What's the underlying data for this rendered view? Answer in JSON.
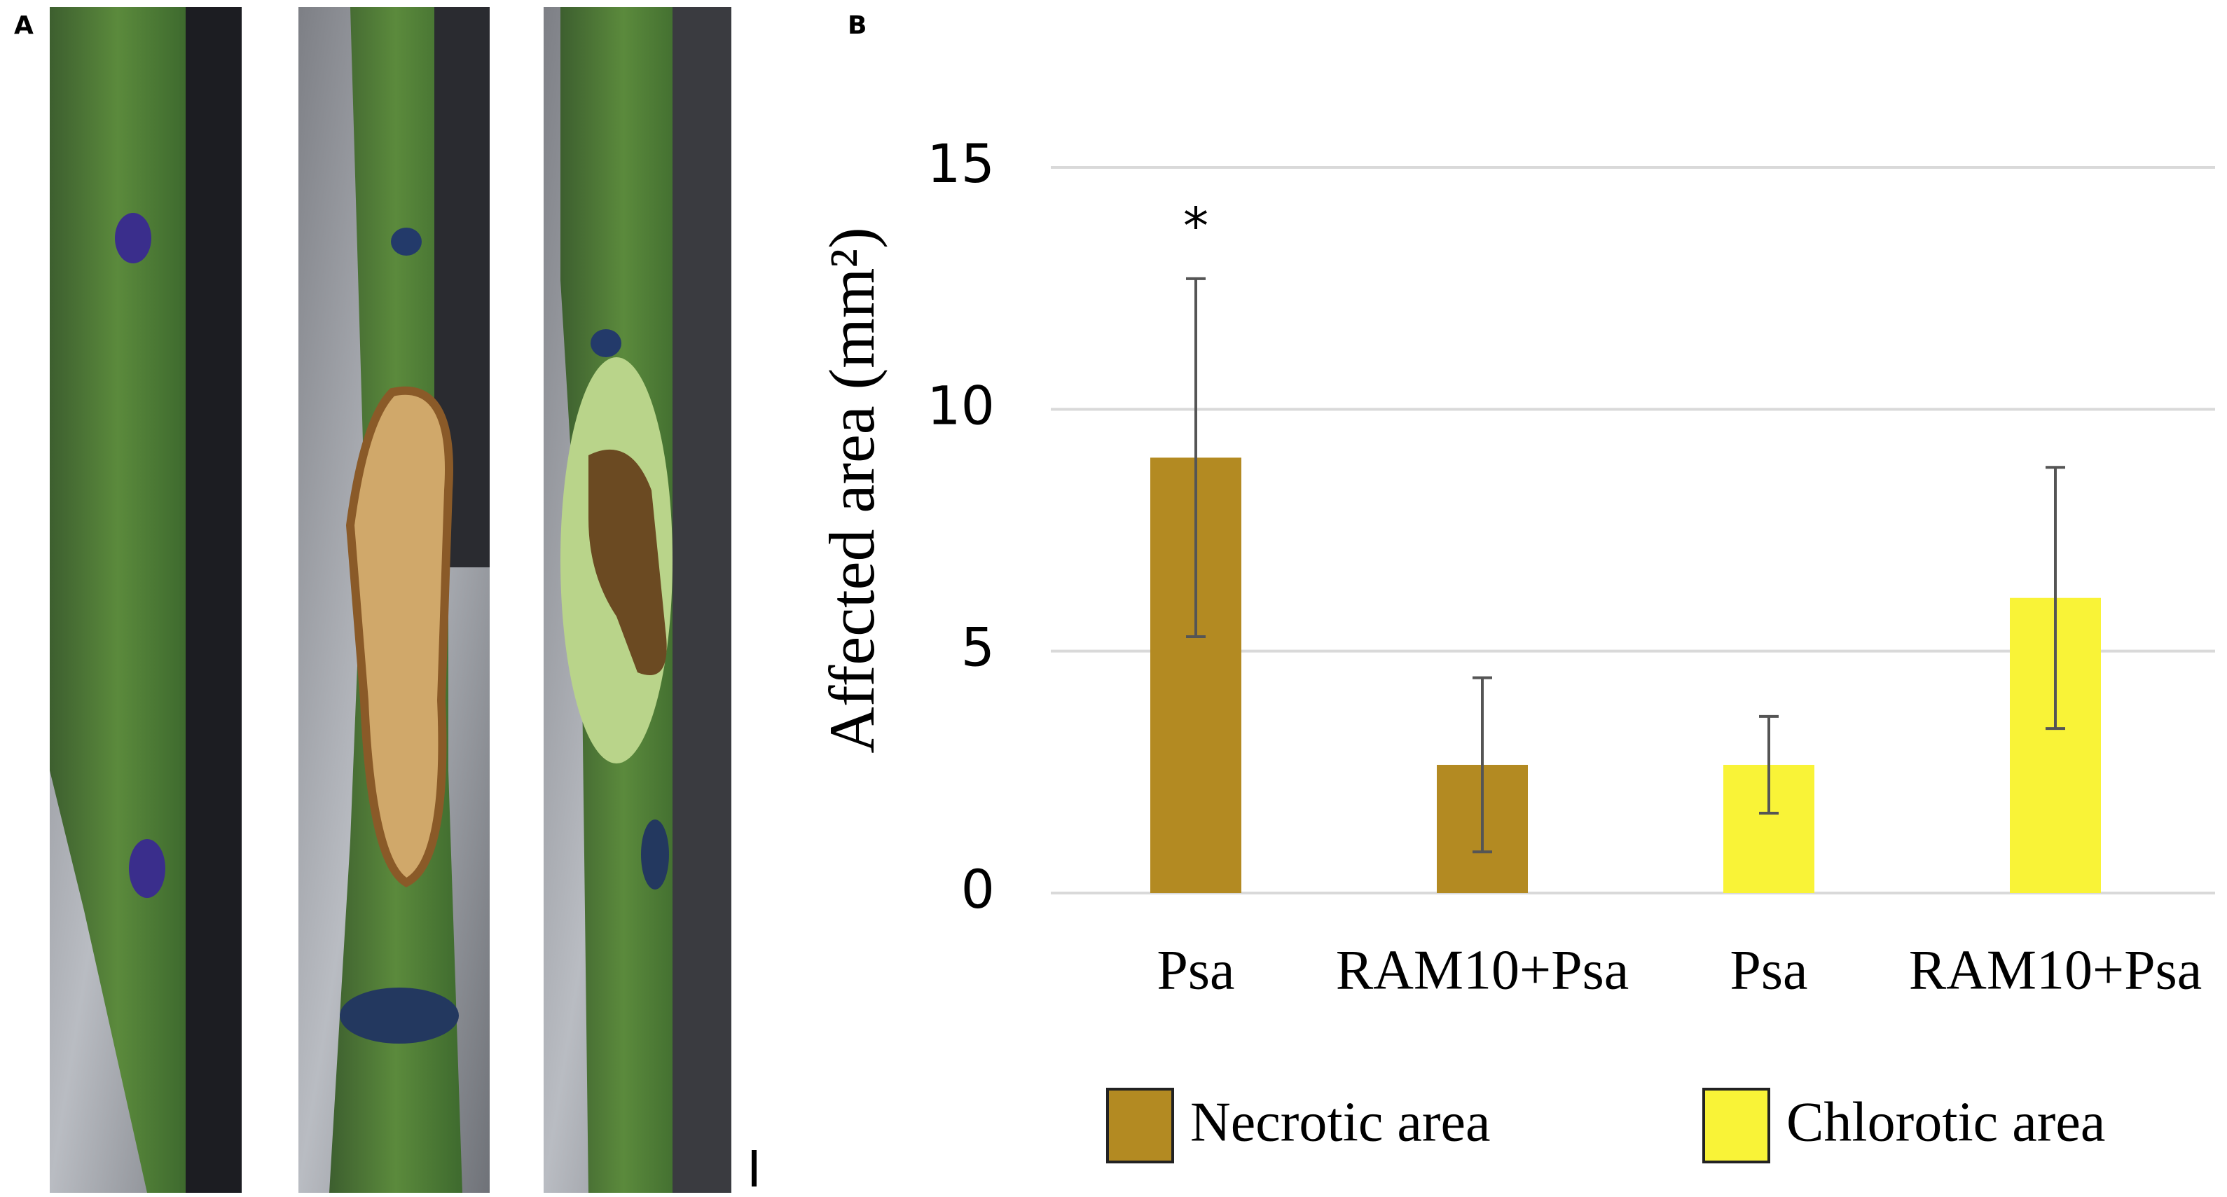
{
  "panel_labels": {
    "a": "A",
    "b": "B"
  },
  "chart_data": {
    "type": "bar",
    "ylabel": "Affected area (mm²)",
    "categories": [
      "Psa",
      "RAM10+Psa",
      "Psa",
      "RAM10+Psa"
    ],
    "series": [
      {
        "name": "Necrotic area",
        "color": "#b38a22",
        "values": [
          9.0,
          2.65,
          null,
          null
        ],
        "errors": [
          3.7,
          1.8,
          null,
          null
        ]
      },
      {
        "name": "Chlorotic area",
        "color": "#f9f337",
        "values": [
          null,
          null,
          2.65,
          6.1
        ],
        "errors": [
          null,
          null,
          1.0,
          2.7
        ]
      }
    ],
    "annotation": "*",
    "ylim": [
      0,
      15
    ],
    "yticks": [
      0,
      5,
      10,
      15
    ],
    "grid": true,
    "legend": "bottom"
  }
}
